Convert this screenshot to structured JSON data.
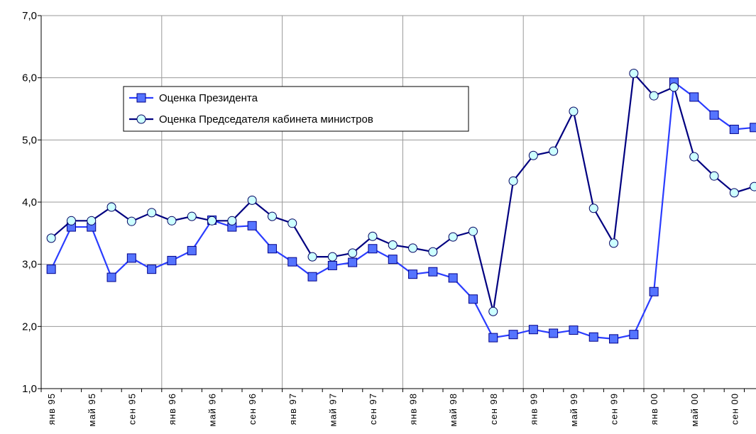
{
  "chart_data": {
    "type": "line",
    "categories": [
      "янв 95",
      null,
      "май 95",
      null,
      "сен 95",
      null,
      "янв 96",
      null,
      "май 96",
      null,
      "сен 96",
      null,
      "янв 97",
      null,
      "май 97",
      null,
      "сен 97",
      null,
      "янв 98",
      null,
      "май 98",
      null,
      "сен 98",
      null,
      "янв 99",
      null,
      "май 99",
      null,
      "сен 99",
      null,
      "янв 00",
      null,
      "май 00",
      null,
      "сен 00",
      null
    ],
    "series": [
      {
        "name": "Оценка Президента",
        "color": "#2a3cff",
        "marker": "square",
        "marker_fill": "#5574ff",
        "values": [
          2.92,
          3.6,
          3.6,
          2.79,
          3.1,
          2.92,
          3.06,
          3.22,
          3.71,
          3.6,
          3.62,
          3.25,
          3.04,
          2.8,
          2.98,
          3.03,
          3.25,
          3.08,
          2.84,
          2.88,
          2.78,
          2.44,
          1.82,
          1.87,
          1.95,
          1.89,
          1.94,
          1.83,
          1.8,
          1.87,
          2.56,
          5.93,
          5.69,
          5.4,
          5.17,
          5.2
        ]
      },
      {
        "name": "Оценка Председателя кабинета министров",
        "color": "#000080",
        "marker": "circle",
        "marker_fill": "#ccffff",
        "values": [
          3.42,
          3.7,
          3.7,
          3.92,
          3.69,
          3.83,
          3.7,
          3.77,
          3.7,
          3.7,
          4.03,
          3.77,
          3.66,
          3.12,
          3.12,
          3.18,
          3.45,
          3.31,
          3.26,
          3.2,
          3.44,
          3.53,
          2.24,
          4.34,
          4.75,
          4.82,
          5.46,
          3.9,
          3.34,
          6.07,
          5.71,
          5.85,
          4.73,
          4.42,
          4.15,
          4.25
        ]
      }
    ],
    "ylim": [
      1,
      7
    ],
    "yticks": [
      {
        "value": 1,
        "label": "1,0"
      },
      {
        "value": 2,
        "label": "2,0"
      },
      {
        "value": 3,
        "label": "3,0"
      },
      {
        "value": 4,
        "label": "4,0"
      },
      {
        "value": 5,
        "label": "5,0"
      },
      {
        "value": 6,
        "label": "6,0"
      },
      {
        "value": 7,
        "label": "7,0"
      }
    ],
    "grid": true,
    "legend_position": "upper left"
  }
}
